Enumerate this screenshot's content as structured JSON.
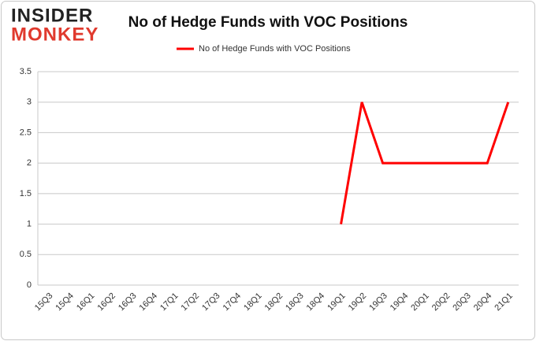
{
  "logo": {
    "line1": "INSIDER",
    "line2": "MONKEY"
  },
  "chart_data": {
    "type": "line",
    "title": "No of Hedge Funds with VOC Positions",
    "categories": [
      "15Q3",
      "15Q4",
      "16Q1",
      "16Q2",
      "16Q3",
      "16Q4",
      "17Q1",
      "17Q2",
      "17Q3",
      "17Q4",
      "18Q1",
      "18Q2",
      "18Q3",
      "18Q4",
      "19Q1",
      "19Q2",
      "19Q3",
      "19Q4",
      "20Q1",
      "20Q2",
      "20Q3",
      "20Q4",
      "21Q1"
    ],
    "series": [
      {
        "name": "No of Hedge Funds with VOC Positions",
        "color": "#ff0000",
        "values": [
          null,
          null,
          null,
          null,
          null,
          null,
          null,
          null,
          null,
          null,
          null,
          null,
          null,
          null,
          1,
          3,
          2,
          2,
          2,
          2,
          2,
          2,
          3
        ]
      }
    ],
    "ylim": [
      0,
      3.5
    ],
    "yticks": [
      0,
      0.5,
      1,
      1.5,
      2,
      2.5,
      3,
      3.5
    ],
    "grid": true,
    "legend": "top"
  }
}
